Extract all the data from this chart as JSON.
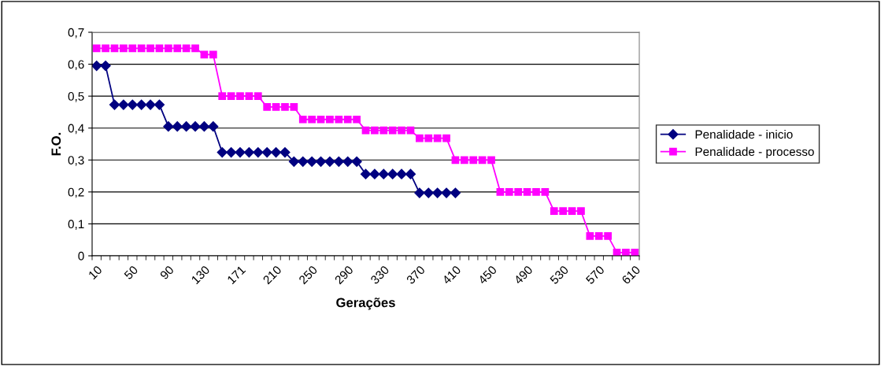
{
  "chart_data": {
    "type": "line",
    "xlabel": "Gerações",
    "ylabel": "F.O.",
    "categories": [
      "10",
      null,
      null,
      null,
      "50",
      null,
      null,
      null,
      "90",
      null,
      null,
      null,
      "130",
      null,
      null,
      null,
      "171",
      null,
      null,
      null,
      "210",
      null,
      null,
      null,
      "250",
      null,
      null,
      null,
      "290",
      null,
      null,
      null,
      "330",
      null,
      null,
      null,
      "370",
      null,
      null,
      null,
      "410",
      null,
      null,
      null,
      "450",
      null,
      null,
      null,
      "490",
      null,
      null,
      null,
      "530",
      null,
      null,
      null,
      "570",
      null,
      null,
      null,
      "610"
    ],
    "series": [
      {
        "name": "Penalidade - inicio",
        "color": "#000080",
        "marker": "diamond",
        "values": [
          0.595,
          0.595,
          0.473,
          0.473,
          0.473,
          0.473,
          0.473,
          0.473,
          0.405,
          0.405,
          0.405,
          0.405,
          0.405,
          0.405,
          0.324,
          0.324,
          0.324,
          0.324,
          0.324,
          0.324,
          0.324,
          0.324,
          0.295,
          0.295,
          0.295,
          0.295,
          0.295,
          0.295,
          0.295,
          0.295,
          0.256,
          0.256,
          0.256,
          0.256,
          0.256,
          0.256,
          0.197,
          0.197,
          0.197,
          0.197,
          0.197,
          null,
          null,
          null,
          null,
          null,
          null,
          null,
          null,
          null,
          null,
          null,
          null,
          null,
          null,
          null,
          null,
          null,
          null,
          null,
          null
        ]
      },
      {
        "name": "Penalidade - processo",
        "color": "#ff00ff",
        "marker": "square",
        "values": [
          0.65,
          0.65,
          0.65,
          0.65,
          0.65,
          0.65,
          0.65,
          0.65,
          0.65,
          0.65,
          0.65,
          0.65,
          0.63,
          0.63,
          0.5,
          0.5,
          0.5,
          0.5,
          0.5,
          0.466,
          0.466,
          0.466,
          0.466,
          0.427,
          0.427,
          0.427,
          0.427,
          0.427,
          0.427,
          0.427,
          0.393,
          0.393,
          0.393,
          0.393,
          0.393,
          0.393,
          0.368,
          0.368,
          0.368,
          0.368,
          0.3,
          0.3,
          0.3,
          0.3,
          0.3,
          0.2,
          0.2,
          0.2,
          0.2,
          0.2,
          0.2,
          0.14,
          0.14,
          0.14,
          0.14,
          0.062,
          0.062,
          0.062,
          0.01,
          0.01,
          0.01
        ]
      }
    ],
    "ylim": [
      0,
      0.7
    ],
    "yticks": [
      0,
      {
        "value": 0.1,
        "label": "0,1"
      },
      {
        "value": 0.2,
        "label": "0,2"
      },
      {
        "value": 0.3,
        "label": "0,3"
      },
      {
        "value": 0.4,
        "label": "0,4"
      },
      {
        "value": 0.5,
        "label": "0,5"
      },
      {
        "value": 0.6,
        "label": "0,6"
      },
      {
        "value": 0.7,
        "label": "0,7"
      }
    ],
    "grid": "y",
    "legend": "right",
    "line_style": "solid"
  }
}
